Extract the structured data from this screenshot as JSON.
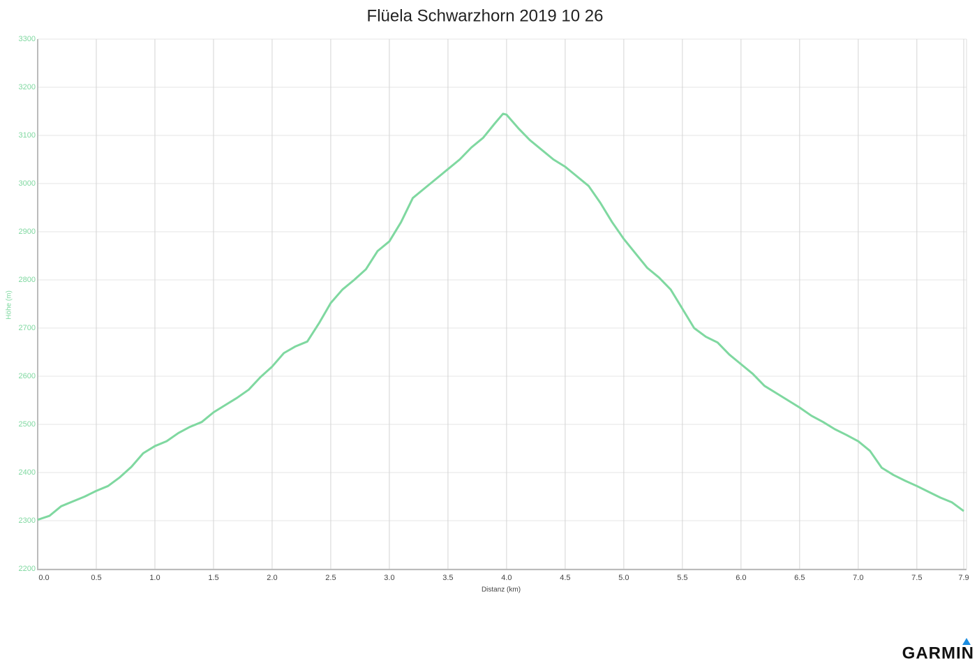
{
  "chart_data": {
    "type": "line",
    "title": "Flüela Schwarzhorn 2019 10 26",
    "xlabel": "Distanz (km)",
    "ylabel": "Höhe (m)",
    "xlim": [
      0,
      7.9
    ],
    "ylim": [
      2200,
      3300
    ],
    "xticks": [
      {
        "value": 0,
        "label": "0.0"
      },
      0.5,
      {
        "value": 1,
        "label": "1.0"
      },
      1.5,
      {
        "value": 2,
        "label": "2.0"
      },
      2.5,
      {
        "value": 3,
        "label": "3.0"
      },
      3.5,
      {
        "value": 4,
        "label": "4.0"
      },
      4.5,
      {
        "value": 5,
        "label": "5.0"
      },
      5.5,
      {
        "value": 6,
        "label": "6.0"
      },
      6.5,
      {
        "value": 7,
        "label": "7.0"
      },
      7.5,
      7.9
    ],
    "yticks": [
      2200,
      2300,
      2400,
      2500,
      2600,
      2700,
      2800,
      2900,
      3000,
      3100,
      3200,
      3300
    ],
    "grid": true,
    "x": [
      0,
      0.1,
      0.2,
      0.3,
      0.4,
      0.5,
      0.6,
      0.7,
      0.8,
      0.9,
      1.0,
      1.1,
      1.2,
      1.3,
      1.4,
      1.5,
      1.6,
      1.7,
      1.8,
      1.9,
      2.0,
      2.1,
      2.2,
      2.3,
      2.4,
      2.5,
      2.6,
      2.7,
      2.8,
      2.9,
      3.0,
      3.1,
      3.2,
      3.3,
      3.4,
      3.5,
      3.6,
      3.7,
      3.8,
      3.9,
      3.97,
      4.0,
      4.1,
      4.2,
      4.3,
      4.4,
      4.5,
      4.6,
      4.7,
      4.8,
      4.9,
      5.0,
      5.1,
      5.2,
      5.3,
      5.4,
      5.5,
      5.6,
      5.7,
      5.8,
      5.9,
      6.0,
      6.1,
      6.2,
      6.3,
      6.4,
      6.5,
      6.6,
      6.7,
      6.8,
      6.9,
      7.0,
      7.1,
      7.2,
      7.3,
      7.4,
      7.5,
      7.6,
      7.7,
      7.8,
      7.9
    ],
    "series": [
      {
        "color": "#7fd8a0",
        "values": [
          2302,
          2310,
          2330,
          2340,
          2350,
          2362,
          2372,
          2390,
          2412,
          2440,
          2455,
          2465,
          2482,
          2495,
          2505,
          2525,
          2540,
          2555,
          2572,
          2598,
          2620,
          2648,
          2662,
          2672,
          2710,
          2752,
          2780,
          2800,
          2822,
          2860,
          2880,
          2920,
          2970,
          2990,
          3010,
          3030,
          3050,
          3075,
          3095,
          3125,
          3145,
          3143,
          3115,
          3090,
          3070,
          3050,
          3035,
          3015,
          2995,
          2960,
          2920,
          2885,
          2855,
          2825,
          2805,
          2780,
          2740,
          2700,
          2682,
          2670,
          2645,
          2625,
          2605,
          2580,
          2565,
          2550,
          2535,
          2518,
          2505,
          2490,
          2478,
          2465,
          2445,
          2410,
          2395,
          2383,
          2372,
          2360,
          2348,
          2338,
          2320
        ]
      }
    ]
  },
  "logo": "GARMIN"
}
